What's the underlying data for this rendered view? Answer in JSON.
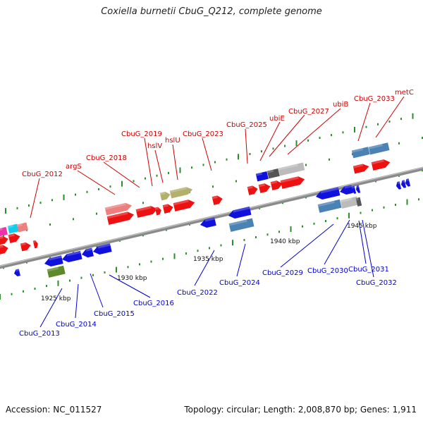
{
  "title": "Coxiella burnetii CbuG_Q212, complete genome",
  "footer": {
    "accession": "Accession: NC_011527",
    "topology": "Topology: circular; Length: 2,008,870 bp; Genes: 1,911"
  },
  "colors": {
    "forward_label": "#cc0000",
    "reverse_label": "#0000cc",
    "backbone": "#8a8a8a",
    "tick": "#2e8b2e"
  },
  "scale_ticks": [
    "1925 kbp",
    "1930 kbp",
    "1935 kbp",
    "1940 kbp",
    "1945 kbp"
  ],
  "forward_genes": [
    "CbuG_2012",
    "argS",
    "CbuG_2018",
    "CbuG_2019",
    "hslV",
    "hslU",
    "CbuG_2023",
    "CbuG_2025",
    "ubiE",
    "CbuG_2027",
    "ubiB",
    "CbuG_2033",
    "metC"
  ],
  "reverse_genes": [
    "CbuG_2013",
    "CbuG_2014",
    "CbuG_2015",
    "CbuG_2016",
    "CbuG_2022",
    "CbuG_2024",
    "CbuG_2029",
    "CbuG_2030",
    "CbuG_2031",
    "CbuG_2032"
  ]
}
